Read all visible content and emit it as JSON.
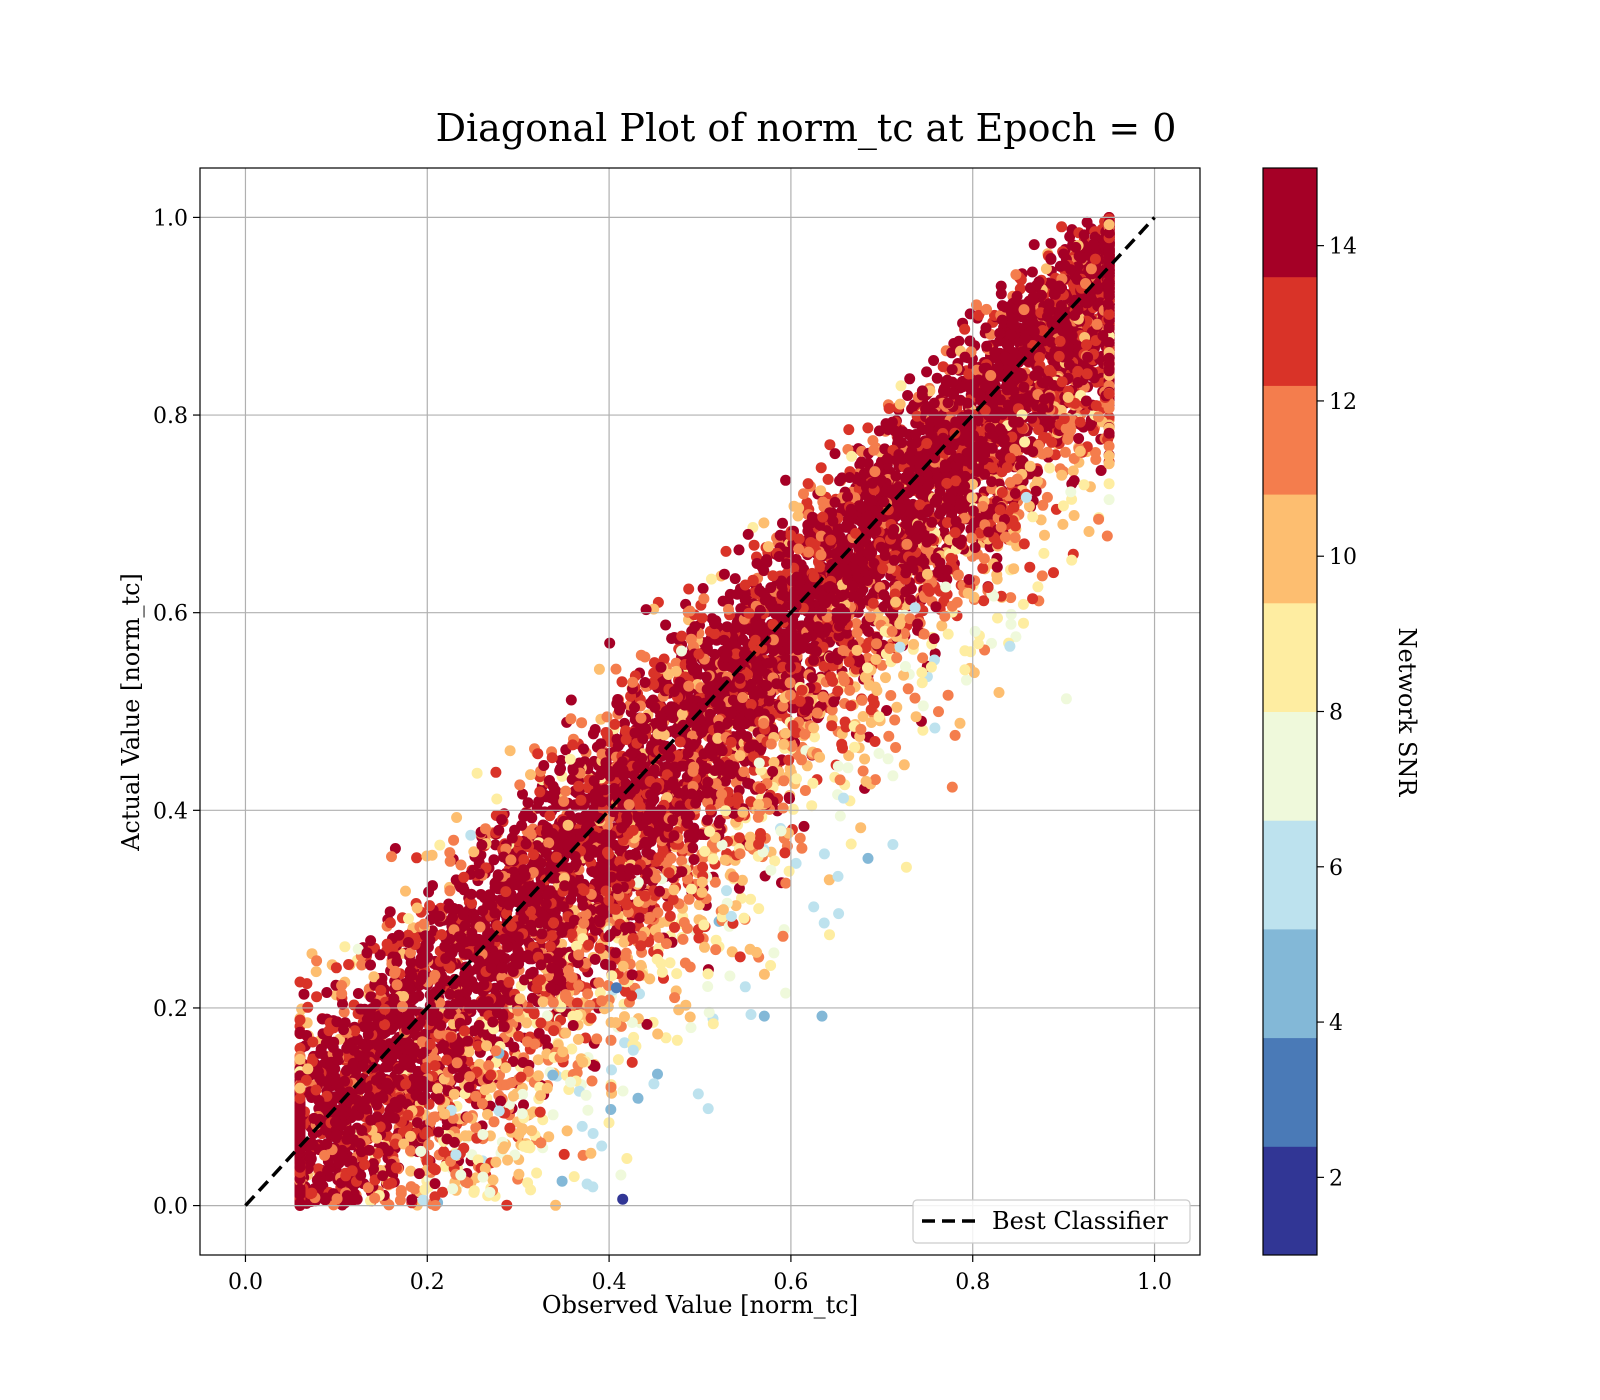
{
  "chart_data": {
    "type": "scatter",
    "title": "Diagonal Plot of norm_tc at Epoch = 0",
    "xlabel": "Observed Value [norm_tc]",
    "ylabel": "Actual Value [norm_tc]",
    "xlim": [
      -0.05,
      1.05
    ],
    "ylim": [
      -0.05,
      1.05
    ],
    "xticks": [
      0.0,
      0.2,
      0.4,
      0.6,
      0.8,
      1.0
    ],
    "yticks": [
      0.0,
      0.2,
      0.4,
      0.6,
      0.8,
      1.0
    ],
    "xtick_labels": [
      "0.0",
      "0.2",
      "0.4",
      "0.6",
      "0.8",
      "1.0"
    ],
    "ytick_labels": [
      "0.0",
      "0.2",
      "0.4",
      "0.6",
      "0.8",
      "1.0"
    ],
    "grid": true,
    "reference_line": {
      "name": "Best Classifier",
      "x": [
        0.0,
        1.0
      ],
      "y": [
        0.0,
        1.0
      ],
      "style": "dashed",
      "color": "#000000"
    },
    "legend": {
      "position": "lower-right",
      "entries": [
        "Best Classifier"
      ]
    },
    "point_cloud": {
      "description_of_distribution": "points concentrated along y = x with horizontal spread increasing away from the diagonal; x ranges about 0.06 to 0.95, y ranges 0.0 to 1.0",
      "offset_range": [
        -0.24,
        0.62
      ],
      "x_min": 0.06,
      "x_max": 0.95,
      "y_min": 0.0,
      "y_max": 1.0
    },
    "colorbar": {
      "label": "Network SNR",
      "range": [
        1,
        15
      ],
      "bin_edges": [
        1,
        2.4,
        3.8,
        5.2,
        6.6,
        8.0,
        9.4,
        10.8,
        12.2,
        13.6,
        15
      ],
      "colors": [
        "#313695",
        "#4a7ab7",
        "#83b8d7",
        "#bde2ee",
        "#eff9db",
        "#feeda1",
        "#fdbe70",
        "#f47d4d",
        "#d93328",
        "#a50026"
      ],
      "ticks": [
        2,
        4,
        6,
        8,
        10,
        12,
        14
      ],
      "tick_labels": [
        "2",
        "4",
        "6",
        "8",
        "10",
        "12",
        "14"
      ]
    }
  }
}
